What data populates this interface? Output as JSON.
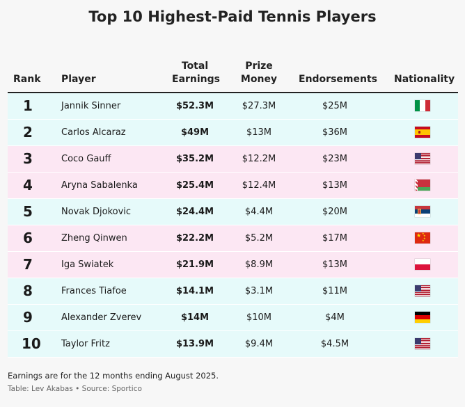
{
  "title": "Top 10 Highest-Paid Tennis Players",
  "header": {
    "rank": "Rank",
    "player": "Player",
    "total_line1": "Total",
    "total_line2": "Earnings",
    "prize_line1": "Prize",
    "prize_line2": "Money",
    "endorsements": "Endorsements",
    "nationality": "Nationality"
  },
  "row_colors": {
    "cyan": "#e6fafa",
    "pink": "#fce7f3"
  },
  "rows": [
    {
      "rank": "1",
      "player": "Jannik Sinner",
      "total": "$52.3M",
      "prize": "$27.3M",
      "endorsements": "$25M",
      "flag": "italy-flag",
      "bg": "cyan"
    },
    {
      "rank": "2",
      "player": "Carlos Alcaraz",
      "total": "$49M",
      "prize": "$13M",
      "endorsements": "$36M",
      "flag": "spain-flag",
      "bg": "cyan"
    },
    {
      "rank": "3",
      "player": "Coco Gauff",
      "total": "$35.2M",
      "prize": "$12.2M",
      "endorsements": "$23M",
      "flag": "usa-flag",
      "bg": "pink"
    },
    {
      "rank": "4",
      "player": "Aryna Sabalenka",
      "total": "$25.4M",
      "prize": "$12.4M",
      "endorsements": "$13M",
      "flag": "belarus-flag",
      "bg": "pink"
    },
    {
      "rank": "5",
      "player": "Novak Djokovic",
      "total": "$24.4M",
      "prize": "$4.4M",
      "endorsements": "$20M",
      "flag": "serbia-flag",
      "bg": "cyan"
    },
    {
      "rank": "6",
      "player": "Zheng Qinwen",
      "total": "$22.2M",
      "prize": "$5.2M",
      "endorsements": "$17M",
      "flag": "china-flag",
      "bg": "pink"
    },
    {
      "rank": "7",
      "player": "Iga Swiatek",
      "total": "$21.9M",
      "prize": "$8.9M",
      "endorsements": "$13M",
      "flag": "poland-flag",
      "bg": "pink"
    },
    {
      "rank": "8",
      "player": "Frances Tiafoe",
      "total": "$14.1M",
      "prize": "$3.1M",
      "endorsements": "$11M",
      "flag": "usa-flag",
      "bg": "cyan"
    },
    {
      "rank": "9",
      "player": "Alexander Zverev",
      "total": "$14M",
      "prize": "$10M",
      "endorsements": "$4M",
      "flag": "germany-flag",
      "bg": "cyan"
    },
    {
      "rank": "10",
      "player": "Taylor Fritz",
      "total": "$13.9M",
      "prize": "$9.4M",
      "endorsements": "$4.5M",
      "flag": "usa-flag",
      "bg": "cyan"
    }
  ],
  "footnote": "Earnings are for the 12 months ending August 2025.",
  "source": "Table: Lev Akabas • Source: Sportico",
  "chart_data": {
    "type": "table",
    "title": "Top 10 Highest-Paid Tennis Players",
    "columns": [
      "Rank",
      "Player",
      "Total Earnings",
      "Prize Money",
      "Endorsements",
      "Nationality"
    ],
    "rows": [
      [
        1,
        "Jannik Sinner",
        "$52.3M",
        "$27.3M",
        "$25M",
        "Italy"
      ],
      [
        2,
        "Carlos Alcaraz",
        "$49M",
        "$13M",
        "$36M",
        "Spain"
      ],
      [
        3,
        "Coco Gauff",
        "$35.2M",
        "$12.2M",
        "$23M",
        "United States"
      ],
      [
        4,
        "Aryna Sabalenka",
        "$25.4M",
        "$12.4M",
        "$13M",
        "Belarus"
      ],
      [
        5,
        "Novak Djokovic",
        "$24.4M",
        "$4.4M",
        "$20M",
        "Serbia"
      ],
      [
        6,
        "Zheng Qinwen",
        "$22.2M",
        "$5.2M",
        "$17M",
        "China"
      ],
      [
        7,
        "Iga Swiatek",
        "$21.9M",
        "$8.9M",
        "$13M",
        "Poland"
      ],
      [
        8,
        "Frances Tiafoe",
        "$14.1M",
        "$3.1M",
        "$11M",
        "United States"
      ],
      [
        9,
        "Alexander Zverev",
        "$14M",
        "$10M",
        "$4M",
        "Germany"
      ],
      [
        10,
        "Taylor Fritz",
        "$13.9M",
        "$9.4M",
        "$4.5M",
        "United States"
      ]
    ]
  }
}
